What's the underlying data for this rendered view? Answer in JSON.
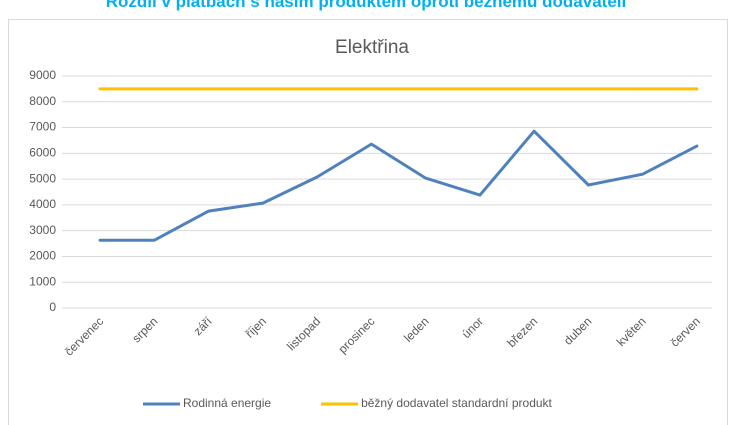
{
  "heading": "Rozdíl v platbách s naším produktem oproti běžnému dodavateli",
  "chart_data": {
    "type": "line",
    "title": "Elektřina",
    "categories": [
      "červenec",
      "srpen",
      "září",
      "říjen",
      "listopad",
      "prosinec",
      "leden",
      "únor",
      "březen",
      "duben",
      "květen",
      "červen"
    ],
    "series": [
      {
        "name": "Rodinná energie",
        "color": "#4f81bd",
        "values": [
          2630,
          2630,
          3760,
          4070,
          5080,
          6360,
          5040,
          4380,
          6860,
          4770,
          5190,
          6280
        ]
      },
      {
        "name": "běžný dodavatel standardní produkt",
        "color": "#ffc000",
        "values": [
          8500,
          8500,
          8500,
          8500,
          8500,
          8500,
          8500,
          8500,
          8500,
          8500,
          8500,
          8500
        ]
      }
    ],
    "ylim": [
      0,
      9000
    ],
    "yticks": [
      0,
      1000,
      2000,
      3000,
      4000,
      5000,
      6000,
      7000,
      8000,
      9000
    ],
    "grid": true,
    "legend": "bottom"
  }
}
